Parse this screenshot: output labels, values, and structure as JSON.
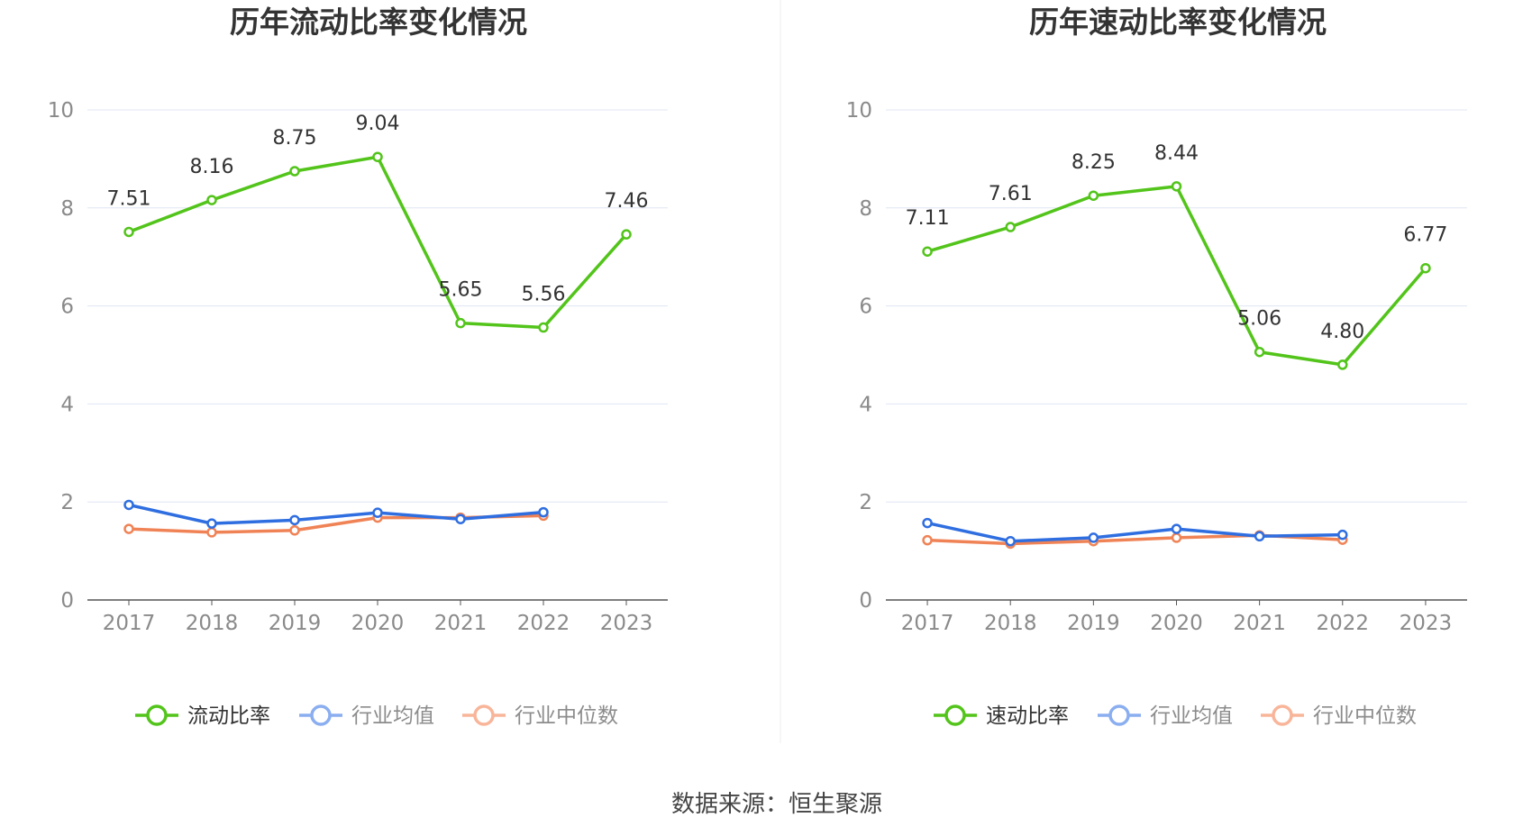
{
  "source_text": "数据来源：恒生聚源",
  "chart_data": [
    {
      "type": "line",
      "title": "历年流动比率变化情况",
      "categories": [
        "2017",
        "2018",
        "2019",
        "2020",
        "2021",
        "2022",
        "2023"
      ],
      "ylim": [
        0,
        10
      ],
      "yticks": [
        "0",
        "2",
        "4",
        "6",
        "8",
        "10"
      ],
      "grid": true,
      "legend_position": "bottom",
      "series": [
        {
          "name": "流动比率",
          "color": "#52c41a",
          "values": [
            7.51,
            8.16,
            8.75,
            9.04,
            5.65,
            5.56,
            7.46
          ],
          "labels": [
            "7.51",
            "8.16",
            "8.75",
            "9.04",
            "5.65",
            "5.56",
            "7.46"
          ]
        },
        {
          "name": "行业均值",
          "color": "#2f6ee0",
          "legend_color": "#8aaef0",
          "values": [
            1.94,
            1.56,
            1.63,
            1.78,
            1.65,
            1.79,
            null
          ]
        },
        {
          "name": "行业中位数",
          "color": "#f08356",
          "legend_color": "#f8b59a",
          "values": [
            1.45,
            1.38,
            1.42,
            1.68,
            1.68,
            1.72,
            null
          ]
        }
      ]
    },
    {
      "type": "line",
      "title": "历年速动比率变化情况",
      "categories": [
        "2017",
        "2018",
        "2019",
        "2020",
        "2021",
        "2022",
        "2023"
      ],
      "ylim": [
        0,
        10
      ],
      "yticks": [
        "0",
        "2",
        "4",
        "6",
        "8",
        "10"
      ],
      "grid": true,
      "legend_position": "bottom",
      "series": [
        {
          "name": "速动比率",
          "color": "#52c41a",
          "values": [
            7.11,
            7.61,
            8.25,
            8.44,
            5.06,
            4.8,
            6.77
          ],
          "labels": [
            "7.11",
            "7.61",
            "8.25",
            "8.44",
            "5.06",
            "4.80",
            "6.77"
          ]
        },
        {
          "name": "行业均值",
          "color": "#2f6ee0",
          "legend_color": "#8aaef0",
          "values": [
            1.57,
            1.2,
            1.27,
            1.45,
            1.3,
            1.33,
            null
          ]
        },
        {
          "name": "行业中位数",
          "color": "#f08356",
          "legend_color": "#f8b59a",
          "values": [
            1.22,
            1.15,
            1.2,
            1.27,
            1.32,
            1.23,
            null
          ]
        }
      ]
    }
  ]
}
